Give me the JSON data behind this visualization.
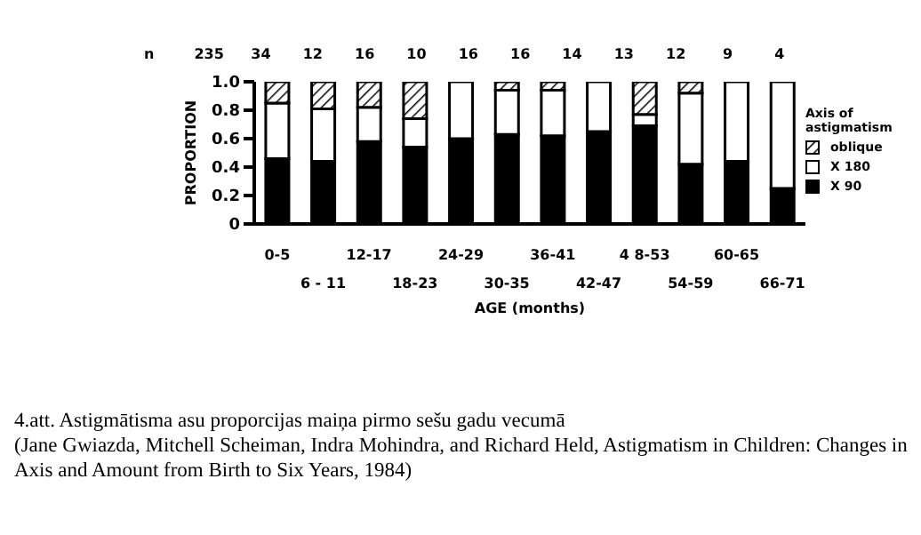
{
  "chart_data": {
    "type": "bar",
    "stacked": true,
    "xlabel": "AGE (months)",
    "ylabel": "PROPORTION",
    "legend_title": "Axis of astigmatism",
    "legend": "right",
    "categories": [
      "0-5",
      "6 - 11",
      "12-17",
      "18-23",
      "24-29",
      "30-35",
      "36-41",
      "42-47",
      "4 8-53",
      "54-59",
      "60-65",
      "66-71"
    ],
    "series": [
      {
        "name": "X 90",
        "color": "#000000",
        "values": [
          0.46,
          0.44,
          0.58,
          0.54,
          0.6,
          0.63,
          0.62,
          0.65,
          0.69,
          0.42,
          0.44,
          0.25
        ]
      },
      {
        "name": "X 180",
        "color": "#ffffff",
        "values": [
          0.39,
          0.37,
          0.24,
          0.2,
          0.4,
          0.31,
          0.32,
          0.35,
          0.08,
          0.5,
          0.56,
          0.75
        ]
      },
      {
        "name": "oblique",
        "color": "#000000",
        "values": [
          0.15,
          0.19,
          0.18,
          0.26,
          0,
          0.06,
          0.06,
          0,
          0.23,
          0.08,
          0,
          0
        ]
      }
    ],
    "ylim": [
      0,
      1
    ],
    "yticks": [
      0,
      0.2,
      0.4,
      0.6,
      0.8,
      {
        "value": 1,
        "label": "1.0"
      }
    ],
    "annotations": [
      "n",
      "235",
      "34",
      "12",
      "16",
      "10",
      "16",
      "16",
      "14",
      "13",
      "12",
      "9",
      "4",
      "4.att. Astigmātisma asu proporcijas maiņa pirmo sešu gadu vecumā",
      "(Jane Gwiazda, Mitchell Scheiman, Indra Mohindra, and Richard Held, Astigmatism in Children: Changes in Axis and Amount from Birth to Six Years, 1984)"
    ]
  }
}
